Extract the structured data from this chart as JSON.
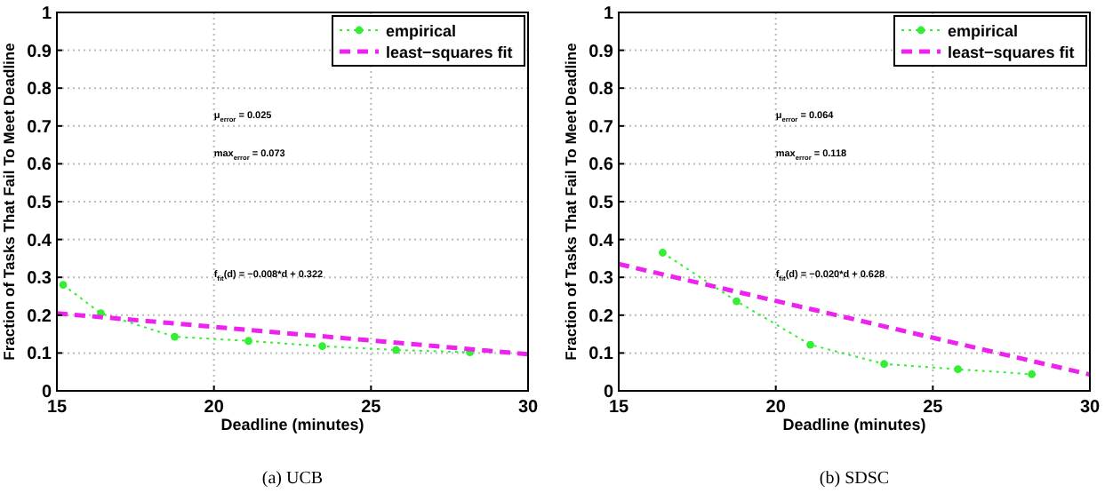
{
  "chart_data": [
    {
      "type": "line",
      "title": "(a) UCB",
      "xlabel": "Deadline (minutes)",
      "ylabel": "Fraction of Tasks That Fail To Meet Deadline",
      "xlim": [
        15,
        30
      ],
      "xticks": [
        15,
        20,
        25,
        30
      ],
      "ylim": [
        0,
        1
      ],
      "yticks": [
        0,
        0.1,
        0.2,
        0.3,
        0.4,
        0.5,
        0.6,
        0.7,
        0.8,
        0.9,
        1
      ],
      "grid": true,
      "legend": "top right",
      "annotations": [
        "μ$_{error}$ = 0.025",
        "max$_{error}$ = 0.073",
        "f$_{fit}$(d) = −0.008*d + 0.322"
      ],
      "series": [
        {
          "name": "empirical",
          "color": "#33ee33",
          "marker": "circle",
          "line_style": "dotted",
          "x": [
            15.2,
            16.4,
            18.75,
            21.1,
            23.45,
            25.8,
            28.15
          ],
          "values": [
            0.28,
            0.205,
            0.143,
            0.132,
            0.118,
            0.108,
            0.102
          ]
        },
        {
          "name": "least−squares fit",
          "color": "#ee22ee",
          "marker": "none",
          "line_style": "dashed",
          "x": [
            15,
            30
          ],
          "values": [
            0.205,
            0.097
          ]
        }
      ]
    },
    {
      "type": "line",
      "title": "(b) SDSC",
      "xlabel": "Deadline (minutes)",
      "ylabel": "Fraction of Tasks That Fail To Meet Deadline",
      "xlim": [
        15,
        30
      ],
      "xticks": [
        15,
        20,
        25,
        30
      ],
      "ylim": [
        0,
        1
      ],
      "yticks": [
        0,
        0.1,
        0.2,
        0.3,
        0.4,
        0.5,
        0.6,
        0.7,
        0.8,
        0.9,
        1
      ],
      "grid": true,
      "legend": "top right",
      "annotations": [
        "μ$_{error}$ = 0.064",
        "max$_{error}$ = 0.118",
        "f$_{fit}$(d) = −0.020*d + 0.628"
      ],
      "series": [
        {
          "name": "empirical",
          "color": "#33ee33",
          "marker": "circle",
          "line_style": "dotted",
          "x": [
            16.4,
            18.75,
            21.1,
            23.45,
            25.8,
            28.15
          ],
          "values": [
            0.365,
            0.237,
            0.122,
            0.071,
            0.057,
            0.044
          ]
        },
        {
          "name": "least−squares fit",
          "color": "#ee22ee",
          "marker": "none",
          "line_style": "dashed",
          "x": [
            15,
            30
          ],
          "values": [
            0.335,
            0.043
          ]
        }
      ]
    }
  ]
}
